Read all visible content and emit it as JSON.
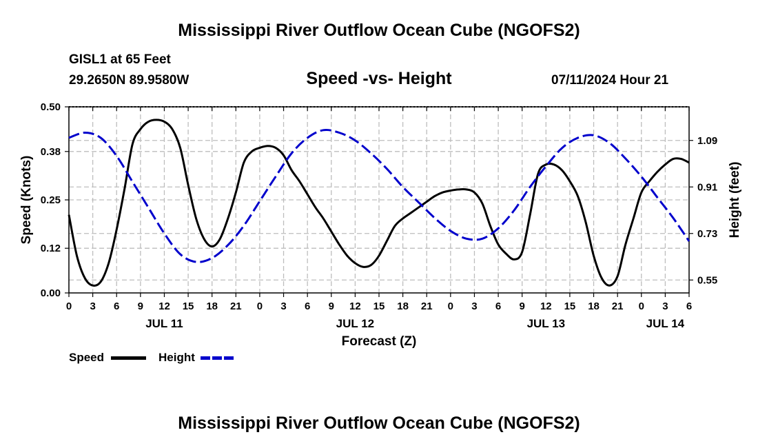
{
  "title": "Mississippi River Outflow Ocean Cube (NGOFS2)",
  "station": "GISL1 at 65 Feet",
  "coords": "29.2650N  89.9580W",
  "date_label": "07/11/2024 Hour 21",
  "footer_title": "Mississippi River Outflow Ocean Cube (NGOFS2)",
  "legend": {
    "speed_label": "Speed",
    "height_label": "Height"
  },
  "colors": {
    "speed": "#000000",
    "height": "#0000cc",
    "grid": "#bdbdbd"
  },
  "chart_data": {
    "type": "line",
    "title": "Speed -vs- Height",
    "xlabel": "Forecast (Z)",
    "ylabel": "Speed (Knots)",
    "y2label": "Height (feet)",
    "xlim": [
      0,
      78
    ],
    "ylim": [
      0,
      0.5
    ],
    "y2lim": [
      0.5,
      1.22
    ],
    "x_tick_labels": [
      "0",
      "3",
      "6",
      "9",
      "12",
      "15",
      "18",
      "21",
      "0",
      "3",
      "6",
      "9",
      "12",
      "15",
      "18",
      "21",
      "0",
      "3",
      "6",
      "9",
      "12",
      "15",
      "18",
      "21",
      "0",
      "3",
      "6"
    ],
    "date_labels": [
      {
        "x": 12,
        "label": "JUL 11"
      },
      {
        "x": 36,
        "label": "JUL 12"
      },
      {
        "x": 60,
        "label": "JUL 13"
      },
      {
        "x": 75,
        "label": "JUL 14"
      }
    ],
    "y_ticks": [
      "0.00",
      "0.12",
      "0.25",
      "0.38",
      "0.50"
    ],
    "y2_ticks": [
      "0.55",
      "0.73",
      "0.91",
      "1.09"
    ],
    "series": [
      {
        "name": "Speed",
        "axis": "left",
        "style": "solid",
        "x": [
          0,
          1,
          2,
          3,
          4,
          5,
          6,
          7,
          8,
          9,
          10,
          11,
          12,
          13,
          14,
          15,
          16,
          17,
          18,
          19,
          20,
          21,
          22,
          23,
          24,
          25,
          26,
          27,
          28,
          29,
          30,
          31,
          32,
          33,
          34,
          35,
          36,
          37,
          38,
          39,
          40,
          41,
          42,
          43,
          44,
          45,
          46,
          47,
          48,
          49,
          50,
          51,
          52,
          53,
          54,
          55,
          56,
          57,
          58,
          59,
          60,
          61,
          62,
          63,
          64,
          65,
          66,
          67,
          68,
          69,
          70,
          71,
          72,
          73,
          74,
          75,
          76,
          77,
          78
        ],
        "values": [
          0.21,
          0.1,
          0.04,
          0.02,
          0.03,
          0.08,
          0.17,
          0.28,
          0.4,
          0.44,
          0.46,
          0.465,
          0.46,
          0.44,
          0.39,
          0.29,
          0.2,
          0.145,
          0.125,
          0.145,
          0.2,
          0.27,
          0.35,
          0.38,
          0.39,
          0.395,
          0.39,
          0.37,
          0.33,
          0.3,
          0.265,
          0.23,
          0.2,
          0.165,
          0.13,
          0.1,
          0.08,
          0.07,
          0.075,
          0.1,
          0.14,
          0.18,
          0.2,
          0.215,
          0.23,
          0.245,
          0.26,
          0.27,
          0.275,
          0.278,
          0.278,
          0.27,
          0.24,
          0.18,
          0.13,
          0.105,
          0.09,
          0.11,
          0.21,
          0.32,
          0.345,
          0.345,
          0.33,
          0.3,
          0.26,
          0.19,
          0.1,
          0.04,
          0.02,
          0.045,
          0.13,
          0.2,
          0.27,
          0.3,
          0.325,
          0.345,
          0.36,
          0.36,
          0.35
        ]
      },
      {
        "name": "Height",
        "axis": "right",
        "style": "dashed",
        "x": [
          0,
          2,
          4,
          6,
          8,
          10,
          12,
          14,
          16,
          18,
          20,
          22,
          24,
          26,
          28,
          30,
          32,
          34,
          36,
          38,
          40,
          42,
          44,
          46,
          48,
          50,
          52,
          54,
          56,
          58,
          60,
          62,
          64,
          66,
          68,
          70,
          72,
          74,
          76,
          78
        ],
        "values": [
          1.1,
          1.12,
          1.1,
          1.03,
          0.93,
          0.83,
          0.73,
          0.65,
          0.62,
          0.635,
          0.685,
          0.76,
          0.855,
          0.95,
          1.04,
          1.1,
          1.13,
          1.12,
          1.09,
          1.04,
          0.98,
          0.91,
          0.85,
          0.79,
          0.74,
          0.71,
          0.71,
          0.75,
          0.82,
          0.91,
          0.99,
          1.06,
          1.1,
          1.11,
          1.08,
          1.02,
          0.95,
          0.87,
          0.79,
          0.7
        ]
      }
    ]
  }
}
